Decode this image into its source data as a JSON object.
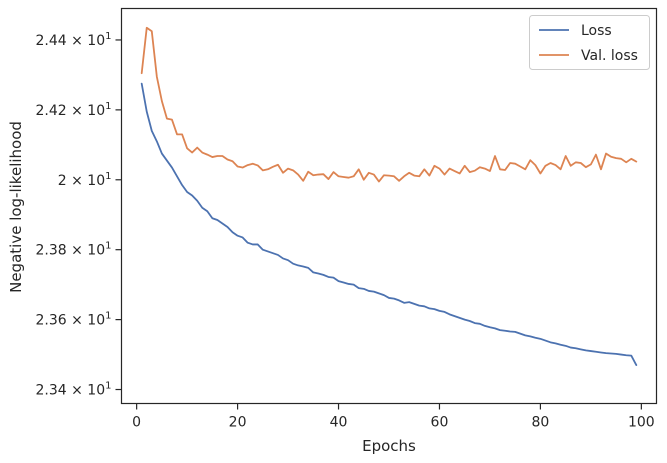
{
  "chart_data": {
    "type": "line",
    "xlabel": "Epochs",
    "ylabel": "Negative log-likelihood",
    "xlim": [
      -3,
      103
    ],
    "ylim": [
      23.36,
      24.49
    ],
    "x_ticks": [
      0,
      20,
      40,
      60,
      80,
      100
    ],
    "y_ticks": [
      {
        "value": 23.4,
        "mantissa": "2.34",
        "base": "10",
        "exponent": "1"
      },
      {
        "value": 23.6,
        "mantissa": "2.36",
        "base": "10",
        "exponent": "1"
      },
      {
        "value": 23.8,
        "mantissa": "2.38",
        "base": "10",
        "exponent": "1"
      },
      {
        "value": 24.0,
        "mantissa": "2",
        "base": "10",
        "exponent": "1"
      },
      {
        "value": 24.2,
        "mantissa": "2.42",
        "base": "10",
        "exponent": "1"
      },
      {
        "value": 24.4,
        "mantissa": "2.44",
        "base": "10",
        "exponent": "1"
      }
    ],
    "legend_position": "top-right",
    "grid": false,
    "x": [
      1,
      2,
      3,
      4,
      5,
      6,
      7,
      8,
      9,
      10,
      11,
      12,
      13,
      14,
      15,
      16,
      17,
      18,
      19,
      20,
      21,
      22,
      23,
      24,
      25,
      26,
      27,
      28,
      29,
      30,
      31,
      32,
      33,
      34,
      35,
      36,
      37,
      38,
      39,
      40,
      41,
      42,
      43,
      44,
      45,
      46,
      47,
      48,
      49,
      50,
      51,
      52,
      53,
      54,
      55,
      56,
      57,
      58,
      59,
      60,
      61,
      62,
      63,
      64,
      65,
      66,
      67,
      68,
      69,
      70,
      71,
      72,
      73,
      74,
      75,
      76,
      77,
      78,
      79,
      80,
      81,
      82,
      83,
      84,
      85,
      86,
      87,
      88,
      89,
      90,
      91,
      92,
      93,
      94,
      95,
      96,
      97,
      98,
      99
    ],
    "series": [
      {
        "name": "Loss",
        "color": "#4c72b0",
        "values": [
          24.275,
          24.195,
          24.14,
          24.11,
          24.075,
          24.055,
          24.035,
          24.01,
          23.985,
          23.965,
          23.955,
          23.94,
          23.92,
          23.91,
          23.89,
          23.885,
          23.875,
          23.865,
          23.85,
          23.84,
          23.835,
          23.82,
          23.815,
          23.815,
          23.8,
          23.795,
          23.79,
          23.785,
          23.775,
          23.77,
          23.76,
          23.755,
          23.752,
          23.748,
          23.735,
          23.732,
          23.728,
          23.722,
          23.72,
          23.71,
          23.706,
          23.702,
          23.7,
          23.69,
          23.688,
          23.682,
          23.68,
          23.675,
          23.67,
          23.662,
          23.66,
          23.655,
          23.648,
          23.65,
          23.645,
          23.64,
          23.638,
          23.632,
          23.63,
          23.625,
          23.622,
          23.615,
          23.61,
          23.605,
          23.6,
          23.596,
          23.59,
          23.588,
          23.582,
          23.578,
          23.575,
          23.57,
          23.568,
          23.566,
          23.565,
          23.56,
          23.555,
          23.552,
          23.548,
          23.545,
          23.54,
          23.535,
          23.532,
          23.528,
          23.525,
          23.52,
          23.518,
          23.515,
          23.512,
          23.51,
          23.508,
          23.506,
          23.504,
          23.503,
          23.502,
          23.5,
          23.498,
          23.497,
          23.47
        ]
      },
      {
        "name": "Val. loss",
        "color": "#dd8452",
        "values": [
          24.305,
          24.435,
          24.425,
          24.295,
          24.225,
          24.175,
          24.172,
          24.13,
          24.13,
          24.09,
          24.078,
          24.092,
          24.078,
          24.072,
          24.065,
          24.068,
          24.068,
          24.058,
          24.053,
          24.038,
          24.035,
          24.042,
          24.046,
          24.041,
          24.027,
          24.03,
          24.037,
          24.043,
          24.02,
          24.032,
          24.027,
          24.015,
          23.997,
          24.023,
          24.013,
          24.015,
          24.016,
          24.002,
          24.022,
          24.01,
          24.008,
          24.006,
          24.01,
          24.03,
          24.0,
          24.02,
          24.015,
          23.995,
          24.013,
          24.012,
          24.01,
          23.997,
          24.01,
          24.02,
          24.012,
          24.01,
          24.03,
          24.012,
          24.04,
          24.032,
          24.015,
          24.032,
          24.025,
          24.018,
          24.04,
          24.022,
          24.026,
          24.036,
          24.032,
          24.025,
          24.068,
          24.03,
          24.028,
          24.048,
          24.046,
          24.038,
          24.03,
          24.056,
          24.042,
          24.018,
          24.04,
          24.048,
          24.042,
          24.03,
          24.068,
          24.04,
          24.05,
          24.048,
          24.036,
          24.044,
          24.072,
          24.03,
          24.075,
          24.066,
          24.062,
          24.06,
          24.05,
          24.06,
          24.052
        ]
      }
    ]
  }
}
